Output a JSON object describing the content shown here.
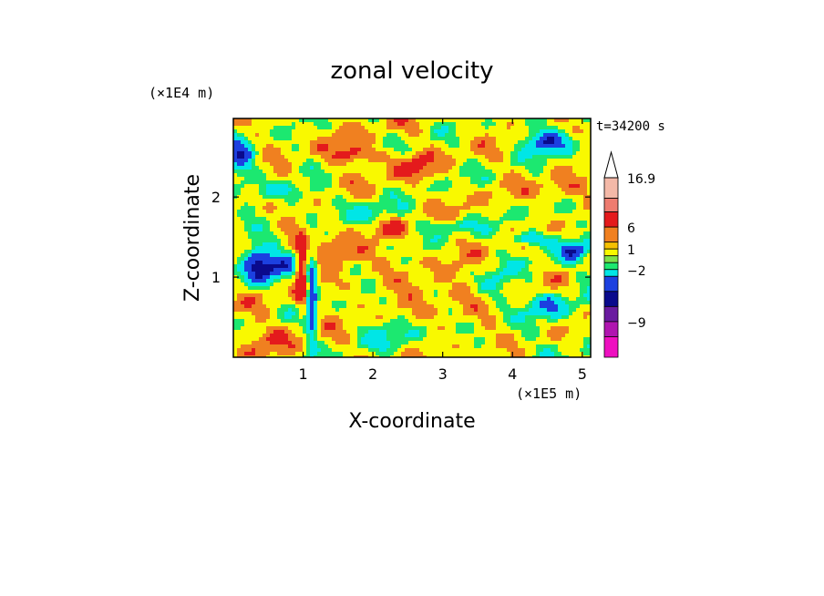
{
  "chart_data": {
    "type": "heatmap",
    "title": "zonal velocity",
    "time_label": "t=34200 s",
    "xlabel": "X-coordinate",
    "ylabel": "Z-coordinate",
    "x_unit_label": "(×1E5 m)",
    "y_unit_label": "(×1E4 m)",
    "x_ticks": [
      "1",
      "2",
      "3",
      "4",
      "5"
    ],
    "x_tick_values": [
      1,
      2,
      3,
      4,
      5
    ],
    "y_ticks": [
      "1",
      "2"
    ],
    "y_tick_values": [
      1,
      2
    ],
    "xlim": [
      0,
      5.12
    ],
    "ylim": [
      0,
      2.98
    ],
    "colorbar": {
      "labels": [
        "16.9",
        "6",
        "1",
        "−2",
        "−9"
      ],
      "label_values": [
        16.9,
        6,
        1,
        -2,
        -9
      ],
      "bands": [
        {
          "color": "#f4b9a8"
        },
        {
          "color": "#ee7c70"
        },
        {
          "color": "#e41a1c"
        },
        {
          "color": "#f08020"
        },
        {
          "color": "#f5c000"
        },
        {
          "color": "#f9f900"
        },
        {
          "color": "#7ee24a"
        },
        {
          "color": "#1ce870"
        },
        {
          "color": "#00e6e6"
        },
        {
          "color": "#1c40e0"
        },
        {
          "color": "#0a0a8c"
        },
        {
          "color": "#6a1ba0"
        },
        {
          "color": "#b016b0"
        },
        {
          "color": "#ee10c0"
        }
      ]
    },
    "field_colors": {
      "strong_positive": "#e41a1c",
      "positive": "#f08020",
      "weak_positive": "#f9f900",
      "near_zero": "#1ce870",
      "weak_negative": "#00e6e6",
      "negative": "#1c40e0",
      "strong_negative": "#0a0a8c"
    },
    "grid": false
  }
}
